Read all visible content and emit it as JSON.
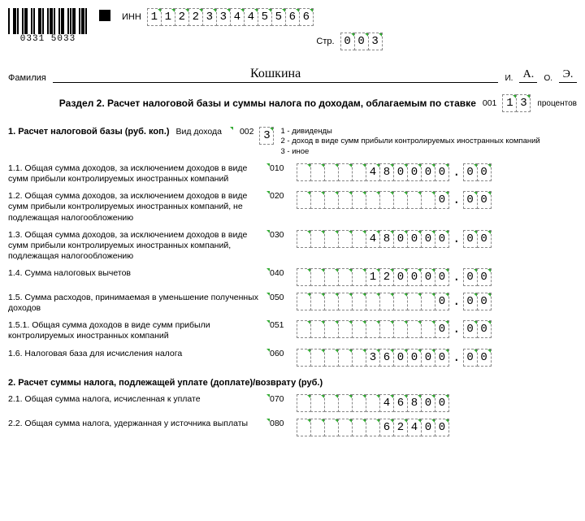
{
  "header": {
    "inn_label": "ИНН",
    "inn": [
      "1",
      "1",
      "2",
      "2",
      "3",
      "3",
      "4",
      "4",
      "5",
      "5",
      "6",
      "6"
    ],
    "page_label": "Стр.",
    "page": [
      "0",
      "0",
      "3"
    ],
    "barcode_text": "0331 5033"
  },
  "name": {
    "surname_label": "Фамилия",
    "surname": "Кошкина",
    "i_label": "И.",
    "i": "А.",
    "o_label": "О.",
    "o": "Э."
  },
  "section": {
    "title": "Раздел 2. Расчет налоговой базы и суммы налога по доходам, облагаемым по ставке",
    "code": "001",
    "rate": [
      "1",
      "3"
    ],
    "percent_label": "процентов"
  },
  "block1": {
    "title": "1. Расчет налоговой базы (руб. коп.)",
    "income_type_label": "Вид дохода",
    "income_type_code": "002",
    "income_type": [
      "3"
    ],
    "legend1": "1 - дивиденды",
    "legend2": "2 - доход в виде сумм прибыли контролируемых иностранных компаний",
    "legend3": "3 - иное"
  },
  "rows": [
    {
      "label": "1.1. Общая сумма доходов, за исключением доходов в виде сумм прибыли контролируемых иностранных компаний",
      "code": "010",
      "int": [
        "",
        "",
        "",
        "",
        "",
        "4",
        "8",
        "0",
        "0",
        "0",
        "0"
      ],
      "frac": [
        "0",
        "0"
      ]
    },
    {
      "label": "1.2. Общая сумма доходов, за исключением доходов в виде сумм прибыли контролируемых иностранных компаний, не подлежащая налогообложению",
      "code": "020",
      "int": [
        "",
        "",
        "",
        "",
        "",
        "",
        "",
        "",
        "",
        "",
        "0"
      ],
      "frac": [
        "0",
        "0"
      ]
    },
    {
      "label": "1.3. Общая сумма доходов, за исключением доходов в виде сумм прибыли контролируемых иностранных компаний, подлежащая налогообложению",
      "code": "030",
      "int": [
        "",
        "",
        "",
        "",
        "",
        "4",
        "8",
        "0",
        "0",
        "0",
        "0"
      ],
      "frac": [
        "0",
        "0"
      ]
    },
    {
      "label": "1.4. Сумма налоговых вычетов",
      "code": "040",
      "int": [
        "",
        "",
        "",
        "",
        "",
        "1",
        "2",
        "0",
        "0",
        "0",
        "0"
      ],
      "frac": [
        "0",
        "0"
      ]
    },
    {
      "label": "1.5. Сумма расходов, принимаемая в уменьшение полученных доходов",
      "code": "050",
      "int": [
        "",
        "",
        "",
        "",
        "",
        "",
        "",
        "",
        "",
        "",
        "0"
      ],
      "frac": [
        "0",
        "0"
      ]
    },
    {
      "label": "1.5.1. Общая сумма доходов в виде сумм прибыли контролируемых иностранных компаний",
      "code": "051",
      "int": [
        "",
        "",
        "",
        "",
        "",
        "",
        "",
        "",
        "",
        "",
        "0"
      ],
      "frac": [
        "0",
        "0"
      ]
    },
    {
      "label": "1.6. Налоговая база для исчисления налога",
      "code": "060",
      "int": [
        "",
        "",
        "",
        "",
        "",
        "3",
        "6",
        "0",
        "0",
        "0",
        "0"
      ],
      "frac": [
        "0",
        "0"
      ]
    }
  ],
  "block2": {
    "title": "2. Расчет суммы налога, подлежащей уплате (доплате)/возврату (руб.)"
  },
  "rows2": [
    {
      "label": "2.1. Общая сумма налога, исчисленная к уплате",
      "code": "070",
      "int": [
        "",
        "",
        "",
        "",
        "",
        "",
        "4",
        "6",
        "8",
        "0",
        "0"
      ]
    },
    {
      "label": "2.2. Общая сумма налога, удержанная у источника выплаты",
      "code": "080",
      "int": [
        "",
        "",
        "",
        "",
        "",
        "",
        "6",
        "2",
        "4",
        "0",
        "0"
      ]
    }
  ]
}
